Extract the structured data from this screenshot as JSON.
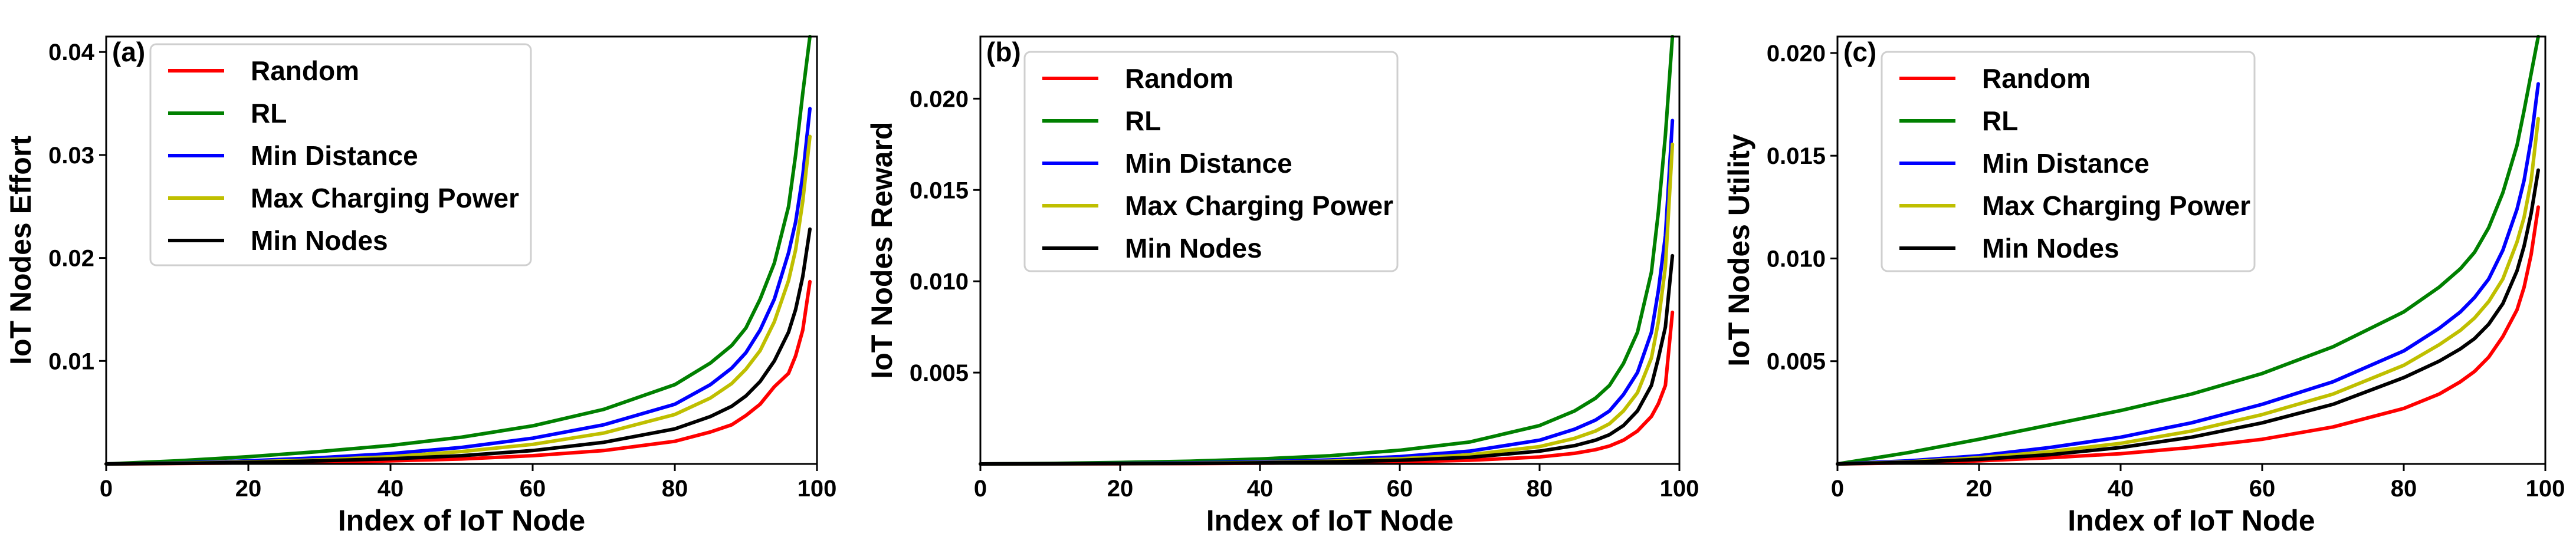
{
  "chart_data": [
    {
      "type": "line",
      "panel_label": "(a)",
      "xlabel": "Index of IoT Node",
      "ylabel": "IoT Nodes Effort",
      "xlim": [
        0,
        100
      ],
      "ylim": [
        0,
        0.0415
      ],
      "xticks": [
        0,
        20,
        40,
        60,
        80,
        100
      ],
      "xtick_labels": [
        "0",
        "20",
        "40",
        "60",
        "80",
        "100"
      ],
      "yticks": [
        0.01,
        0.02,
        0.03,
        0.04
      ],
      "ytick_labels": [
        "0.01",
        "0.02",
        "0.03",
        "0.04"
      ],
      "legend_position": "upper-left",
      "x": [
        0,
        10,
        20,
        30,
        40,
        50,
        60,
        70,
        80,
        85,
        88,
        90,
        92,
        94,
        96,
        97,
        98,
        99
      ],
      "series": [
        {
          "name": "Random",
          "color": "#ff0000",
          "values": [
            0,
            4e-05,
            0.0001,
            0.00018,
            0.0003,
            0.00048,
            0.0008,
            0.0013,
            0.0022,
            0.0031,
            0.0038,
            0.0047,
            0.0058,
            0.0075,
            0.0088,
            0.0105,
            0.013,
            0.0177
          ]
        },
        {
          "name": "RL",
          "color": "#008000",
          "values": [
            0,
            0.0003,
            0.0007,
            0.0012,
            0.0018,
            0.0026,
            0.0037,
            0.0053,
            0.0077,
            0.0098,
            0.0115,
            0.0132,
            0.016,
            0.0195,
            0.025,
            0.03,
            0.036,
            0.0415
          ]
        },
        {
          "name": "Min Distance",
          "color": "#0000ff",
          "values": [
            0,
            0.0001,
            0.0003,
            0.0006,
            0.001,
            0.0016,
            0.0025,
            0.0038,
            0.0058,
            0.0077,
            0.0093,
            0.0108,
            0.013,
            0.016,
            0.0205,
            0.0235,
            0.028,
            0.0345
          ]
        },
        {
          "name": "Max Charging Power",
          "color": "#bfbf00",
          "values": [
            0,
            8e-05,
            0.0002,
            0.0004,
            0.0007,
            0.0012,
            0.0019,
            0.003,
            0.0048,
            0.0064,
            0.0078,
            0.0092,
            0.011,
            0.0138,
            0.0178,
            0.0208,
            0.0255,
            0.0318
          ]
        },
        {
          "name": "Min Nodes",
          "color": "#000000",
          "values": [
            0,
            6e-05,
            0.00015,
            0.0003,
            0.0005,
            0.0008,
            0.0013,
            0.0021,
            0.0034,
            0.0046,
            0.0056,
            0.0066,
            0.008,
            0.01,
            0.0128,
            0.015,
            0.0182,
            0.0228
          ]
        }
      ]
    },
    {
      "type": "line",
      "panel_label": "(b)",
      "xlabel": "Index of IoT Node",
      "ylabel": "IoT Nodes Reward",
      "xlim": [
        0,
        100
      ],
      "ylim": [
        0,
        0.0234
      ],
      "xticks": [
        0,
        20,
        40,
        60,
        80,
        100
      ],
      "xtick_labels": [
        "0",
        "20",
        "40",
        "60",
        "80",
        "100"
      ],
      "yticks": [
        0.005,
        0.01,
        0.015,
        0.02
      ],
      "ytick_labels": [
        "0.005",
        "0.010",
        "0.015",
        "0.020"
      ],
      "legend_position": "upper-left",
      "x": [
        0,
        10,
        20,
        30,
        40,
        50,
        60,
        70,
        80,
        85,
        88,
        90,
        92,
        94,
        96,
        97,
        98,
        99
      ],
      "series": [
        {
          "name": "Random",
          "color": "#ff0000",
          "values": [
            0,
            5e-06,
            1e-05,
            2e-05,
            4e-05,
            7e-05,
            0.00012,
            0.0002,
            0.00038,
            0.00058,
            0.00078,
            0.00098,
            0.0013,
            0.0018,
            0.0026,
            0.0033,
            0.0043,
            0.0083
          ]
        },
        {
          "name": "RL",
          "color": "#008000",
          "values": [
            0,
            3e-05,
            8e-05,
            0.00015,
            0.00027,
            0.00045,
            0.00075,
            0.0012,
            0.0021,
            0.0029,
            0.0036,
            0.0043,
            0.0055,
            0.0072,
            0.0105,
            0.0138,
            0.018,
            0.0234
          ]
        },
        {
          "name": "Min Distance",
          "color": "#0000ff",
          "values": [
            0,
            1e-05,
            3e-05,
            6e-05,
            0.00012,
            0.00022,
            0.0004,
            0.0007,
            0.0013,
            0.0019,
            0.0024,
            0.0029,
            0.0038,
            0.005,
            0.0072,
            0.0095,
            0.0125,
            0.0188
          ]
        },
        {
          "name": "Max Charging Power",
          "color": "#bfbf00",
          "values": [
            0,
            8e-06,
            2e-05,
            4e-05,
            8e-05,
            0.00015,
            0.00028,
            0.0005,
            0.00095,
            0.0014,
            0.0018,
            0.0022,
            0.0029,
            0.0039,
            0.0058,
            0.0078,
            0.0108,
            0.0175
          ]
        },
        {
          "name": "Min Nodes",
          "color": "#000000",
          "values": [
            0,
            6e-06,
            1.5e-05,
            3e-05,
            6e-05,
            0.00011,
            0.0002,
            0.00036,
            0.0007,
            0.001,
            0.0013,
            0.0016,
            0.0021,
            0.0029,
            0.0043,
            0.0058,
            0.0075,
            0.0114
          ]
        }
      ]
    },
    {
      "type": "line",
      "panel_label": "(c)",
      "xlabel": "Index of IoT Node",
      "ylabel": "IoT Nodes Utility",
      "xlim": [
        0,
        100
      ],
      "ylim": [
        0,
        0.0208
      ],
      "xticks": [
        0,
        20,
        40,
        60,
        80,
        100
      ],
      "xtick_labels": [
        "0",
        "20",
        "40",
        "60",
        "80",
        "100"
      ],
      "yticks": [
        0.005,
        0.01,
        0.015,
        0.02
      ],
      "ytick_labels": [
        "0.005",
        "0.010",
        "0.015",
        "0.020"
      ],
      "legend_position": "upper-left",
      "x": [
        0,
        10,
        20,
        30,
        40,
        50,
        60,
        70,
        80,
        85,
        88,
        90,
        92,
        94,
        96,
        97,
        98,
        99
      ],
      "series": [
        {
          "name": "Random",
          "color": "#ff0000",
          "values": [
            0,
            5e-05,
            0.00015,
            0.0003,
            0.0005,
            0.0008,
            0.0012,
            0.0018,
            0.0027,
            0.0034,
            0.004,
            0.0045,
            0.0052,
            0.0062,
            0.0075,
            0.0086,
            0.0102,
            0.0125
          ]
        },
        {
          "name": "RL",
          "color": "#008000",
          "values": [
            0,
            0.00055,
            0.0012,
            0.0019,
            0.0026,
            0.0034,
            0.0044,
            0.0057,
            0.0074,
            0.0086,
            0.0095,
            0.0103,
            0.0115,
            0.0132,
            0.0155,
            0.0172,
            0.019,
            0.0208
          ]
        },
        {
          "name": "Min Distance",
          "color": "#0000ff",
          "values": [
            0,
            0.00015,
            0.0004,
            0.0008,
            0.0013,
            0.002,
            0.0029,
            0.004,
            0.0055,
            0.0066,
            0.0074,
            0.0081,
            0.009,
            0.0104,
            0.0124,
            0.0138,
            0.0158,
            0.0185
          ]
        },
        {
          "name": "Max Charging Power",
          "color": "#bfbf00",
          "values": [
            0,
            0.0001,
            0.0003,
            0.0006,
            0.001,
            0.0016,
            0.0024,
            0.0034,
            0.0048,
            0.0058,
            0.0065,
            0.0071,
            0.0079,
            0.009,
            0.0108,
            0.012,
            0.0138,
            0.0168
          ]
        },
        {
          "name": "Min Nodes",
          "color": "#000000",
          "values": [
            0,
            8e-05,
            0.00022,
            0.00045,
            0.0008,
            0.0013,
            0.002,
            0.0029,
            0.0042,
            0.005,
            0.0056,
            0.0061,
            0.0068,
            0.0078,
            0.0094,
            0.0106,
            0.0122,
            0.0143
          ]
        }
      ]
    }
  ]
}
